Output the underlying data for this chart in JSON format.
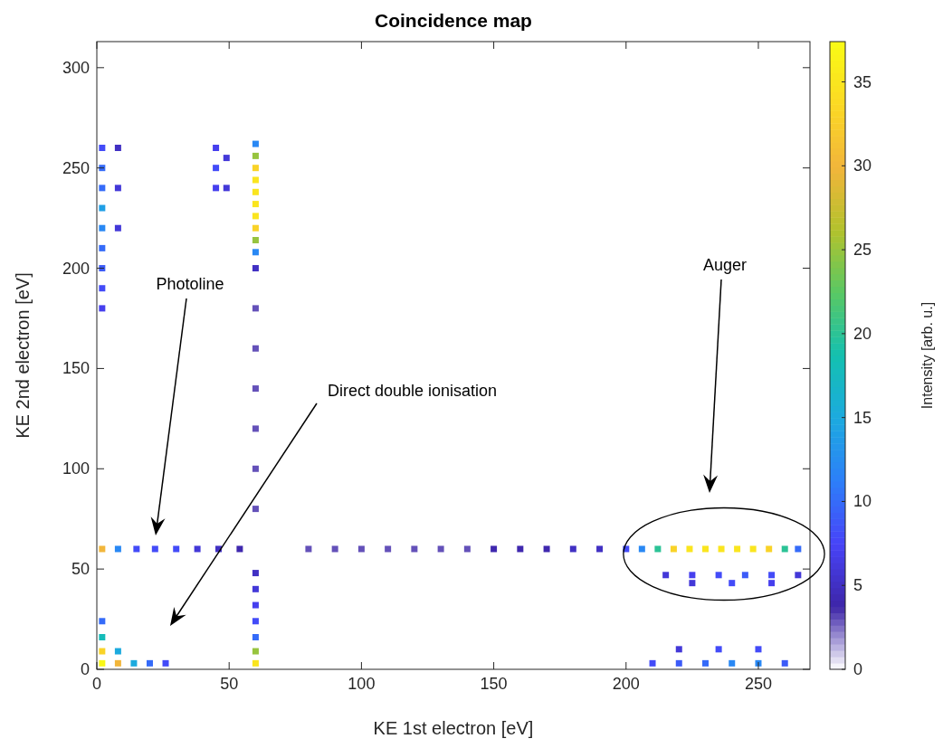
{
  "chart_data": {
    "type": "scatter",
    "title": "Coincidence map",
    "xlabel": "KE 1st electron [eV]",
    "ylabel": "KE 2nd electron [eV]",
    "clabel": "Intensity [arb. u.]",
    "xlim": [
      0,
      269.5
    ],
    "xticks": [
      0,
      50,
      100,
      150,
      200,
      250
    ],
    "ylim": [
      0,
      313
    ],
    "yticks": [
      0,
      50,
      100,
      150,
      200,
      250,
      300
    ],
    "clim": [
      0,
      37.4
    ],
    "cticks": [
      0,
      5,
      10,
      15,
      20,
      25,
      30,
      35
    ],
    "marker": "square",
    "grid": false,
    "annotations": [
      "Photoline",
      "Direct double ionisation",
      "Auger"
    ],
    "series": [
      {
        "x": [
          2,
          8,
          15,
          22,
          30,
          38,
          46,
          54,
          80,
          90,
          100,
          110,
          120,
          130,
          140,
          150,
          160,
          170,
          180,
          190,
          200,
          206,
          212,
          218,
          224,
          230,
          236,
          242,
          248,
          254,
          260,
          265,
          60,
          60,
          60,
          60,
          60,
          60,
          60,
          60,
          60,
          60,
          60,
          60,
          60,
          60,
          60,
          60,
          60,
          60,
          60,
          60,
          60,
          60,
          60,
          60,
          2,
          2,
          2,
          2,
          2,
          2,
          2,
          2,
          2,
          8,
          8,
          8,
          45,
          45,
          45,
          49,
          49,
          2,
          2,
          8,
          14,
          2,
          8,
          2,
          20,
          26,
          210,
          220,
          230,
          240,
          250,
          260,
          220,
          235,
          250,
          215,
          225,
          235,
          245,
          255,
          265,
          225,
          240,
          255
        ],
        "values": [
          60,
          60,
          60,
          60,
          60,
          60,
          60,
          60,
          60,
          60,
          60,
          60,
          60,
          60,
          60,
          60,
          60,
          60,
          60,
          60,
          60,
          60,
          60,
          60,
          60,
          60,
          60,
          60,
          60,
          60,
          60,
          60,
          3,
          9,
          16,
          24,
          32,
          40,
          48,
          80,
          100,
          120,
          140,
          160,
          180,
          200,
          208,
          214,
          220,
          226,
          232,
          238,
          244,
          250,
          256,
          262,
          180,
          190,
          200,
          210,
          220,
          230,
          240,
          250,
          260,
          220,
          240,
          260,
          240,
          250,
          260,
          240,
          255,
          3,
          9,
          3,
          3,
          16,
          9,
          24,
          3,
          3,
          3,
          3,
          3,
          3,
          3,
          3,
          10,
          10,
          10,
          47,
          47,
          47,
          47,
          47,
          47,
          43,
          43,
          43
        ],
        "cvalues": [
          30,
          12,
          8,
          8,
          8,
          6,
          5,
          4,
          3,
          3,
          3,
          3,
          3,
          3,
          3,
          4,
          4,
          4,
          5,
          5,
          8,
          12,
          20,
          33,
          35,
          35,
          35,
          35,
          35,
          33,
          20,
          10,
          35,
          25,
          10,
          8,
          7,
          6,
          5,
          3,
          3,
          3,
          3,
          3,
          3,
          5,
          12,
          25,
          33,
          35,
          35,
          35,
          35,
          33,
          25,
          12,
          7,
          8,
          9,
          10,
          12,
          14,
          10,
          10,
          8,
          6,
          6,
          5,
          7,
          8,
          7,
          6,
          6,
          37,
          33,
          30,
          15,
          18,
          15,
          10,
          10,
          8,
          8,
          9,
          10,
          12,
          12,
          9,
          6,
          8,
          8,
          6,
          7,
          8,
          9,
          8,
          6,
          6,
          8,
          7
        ]
      }
    ]
  }
}
